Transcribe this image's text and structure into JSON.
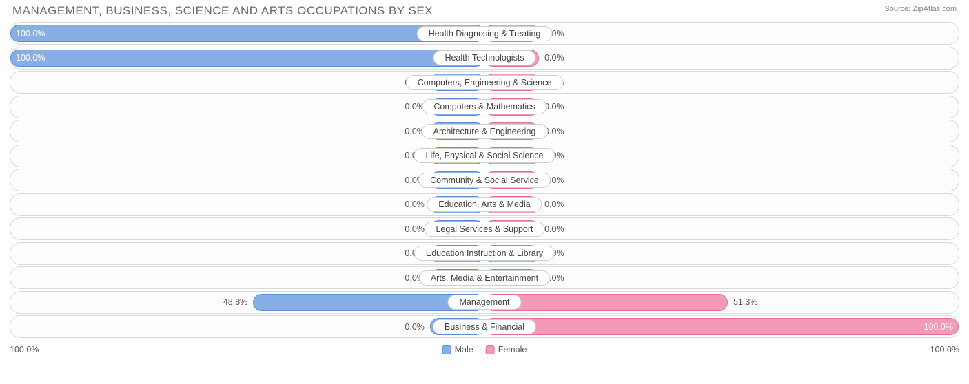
{
  "title": "MANAGEMENT, BUSINESS, SCIENCE AND ARTS OCCUPATIONS BY SEX",
  "source_label": "Source:",
  "source_name": "ZipAtlas.com",
  "chart": {
    "type": "diverging-bar",
    "axis_left": "100.0%",
    "axis_right": "100.0%",
    "min_bar_pct": 11.5,
    "colors": {
      "male_fill": "#88aee6",
      "male_stroke": "#5a8ed8",
      "female_fill": "#f29ab8",
      "female_stroke": "#e56d97",
      "row_border": "#d9d9d9",
      "label_border": "#cfcfcf",
      "text": "#555555",
      "title_text": "#6b6b6b",
      "source_text": "#888888",
      "background": "#ffffff"
    },
    "legend": [
      {
        "label": "Male",
        "fill": "#88aee6",
        "stroke": "#5a8ed8"
      },
      {
        "label": "Female",
        "fill": "#f29ab8",
        "stroke": "#e56d97"
      }
    ],
    "rows": [
      {
        "category": "Health Diagnosing & Treating",
        "male": 100.0,
        "male_label": "100.0%",
        "female": 0.0,
        "female_label": "0.0%"
      },
      {
        "category": "Health Technologists",
        "male": 100.0,
        "male_label": "100.0%",
        "female": 0.0,
        "female_label": "0.0%"
      },
      {
        "category": "Computers, Engineering & Science",
        "male": 0.0,
        "male_label": "0.0%",
        "female": 0.0,
        "female_label": "0.0%"
      },
      {
        "category": "Computers & Mathematics",
        "male": 0.0,
        "male_label": "0.0%",
        "female": 0.0,
        "female_label": "0.0%"
      },
      {
        "category": "Architecture & Engineering",
        "male": 0.0,
        "male_label": "0.0%",
        "female": 0.0,
        "female_label": "0.0%"
      },
      {
        "category": "Life, Physical & Social Science",
        "male": 0.0,
        "male_label": "0.0%",
        "female": 0.0,
        "female_label": "0.0%"
      },
      {
        "category": "Community & Social Service",
        "male": 0.0,
        "male_label": "0.0%",
        "female": 0.0,
        "female_label": "0.0%"
      },
      {
        "category": "Education, Arts & Media",
        "male": 0.0,
        "male_label": "0.0%",
        "female": 0.0,
        "female_label": "0.0%"
      },
      {
        "category": "Legal Services & Support",
        "male": 0.0,
        "male_label": "0.0%",
        "female": 0.0,
        "female_label": "0.0%"
      },
      {
        "category": "Education Instruction & Library",
        "male": 0.0,
        "male_label": "0.0%",
        "female": 0.0,
        "female_label": "0.0%"
      },
      {
        "category": "Arts, Media & Entertainment",
        "male": 0.0,
        "male_label": "0.0%",
        "female": 0.0,
        "female_label": "0.0%"
      },
      {
        "category": "Management",
        "male": 48.8,
        "male_label": "48.8%",
        "female": 51.3,
        "female_label": "51.3%"
      },
      {
        "category": "Business & Financial",
        "male": 0.0,
        "male_label": "0.0%",
        "female": 100.0,
        "female_label": "100.0%"
      }
    ]
  }
}
